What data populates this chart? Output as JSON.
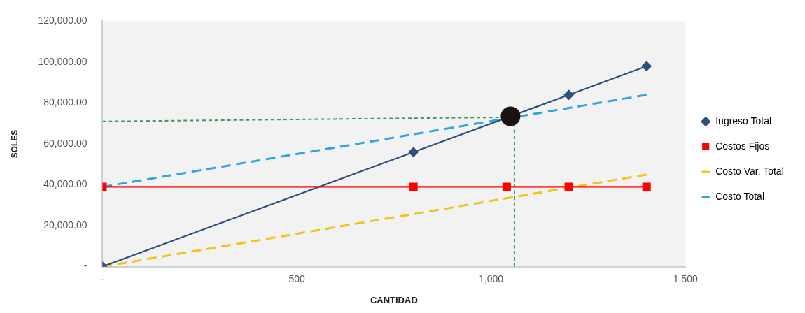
{
  "chart_data": {
    "type": "line",
    "xlabel": "CANTIDAD",
    "ylabel": "SOLES",
    "xlim": [
      0,
      1500
    ],
    "xticks": [
      {
        "value": 0,
        "label": "-"
      },
      500,
      {
        "value": 1000,
        "label": "1,000"
      },
      {
        "value": 1500,
        "label": "1,500"
      }
    ],
    "ylim": [
      0,
      120000
    ],
    "yticks": [
      {
        "value": 0,
        "label": "-"
      },
      {
        "value": 20000,
        "label": "20,000.00"
      },
      {
        "value": 40000,
        "label": "40,000.00"
      },
      {
        "value": 60000,
        "label": "60,000.00"
      },
      {
        "value": 80000,
        "label": "80,000.00"
      },
      {
        "value": 100000,
        "label": "100,000.00"
      },
      {
        "value": 120000,
        "label": "120,000.00"
      }
    ],
    "grid": false,
    "legend": "right",
    "series": [
      {
        "name": "Ingreso Total",
        "color": "#2f4f7f",
        "x": [
          0,
          800,
          1200,
          1400
        ],
        "values": [
          0,
          56000,
          84000,
          98000
        ],
        "marker": "diamond",
        "line_style": "solid"
      },
      {
        "name": "Costos Fijos",
        "color": "#ff0000",
        "x": [
          0,
          800,
          1040,
          1200,
          1400
        ],
        "values": [
          39000,
          39000,
          39000,
          39000,
          39000
        ],
        "marker": "square",
        "line_style": "solid"
      },
      {
        "name": "Costo Var. Total",
        "color": "#f2c318",
        "x": [
          0,
          1400
        ],
        "values": [
          0,
          45000
        ],
        "marker": "none",
        "line_style": "dashed"
      },
      {
        "name": "Costo Total",
        "color": "#2fa8d8",
        "x": [
          0,
          1400
        ],
        "values": [
          39000,
          84000
        ],
        "marker": "none",
        "line_style": "dashed"
      },
      {
        "color": "#3a9a5a",
        "x": [
          0,
          1020
        ],
        "values": [
          71000,
          73000
        ],
        "marker": "none",
        "line_style": "dotted"
      },
      {
        "color": "#3a9a5a",
        "x": [
          1060,
          1060
        ],
        "values": [
          70000,
          0
        ],
        "marker": "none",
        "line_style": "dotted"
      },
      {
        "type": "scatter",
        "color": "#1a1110",
        "x": [
          1050
        ],
        "values": [
          73500
        ],
        "marker": "circle"
      }
    ]
  }
}
